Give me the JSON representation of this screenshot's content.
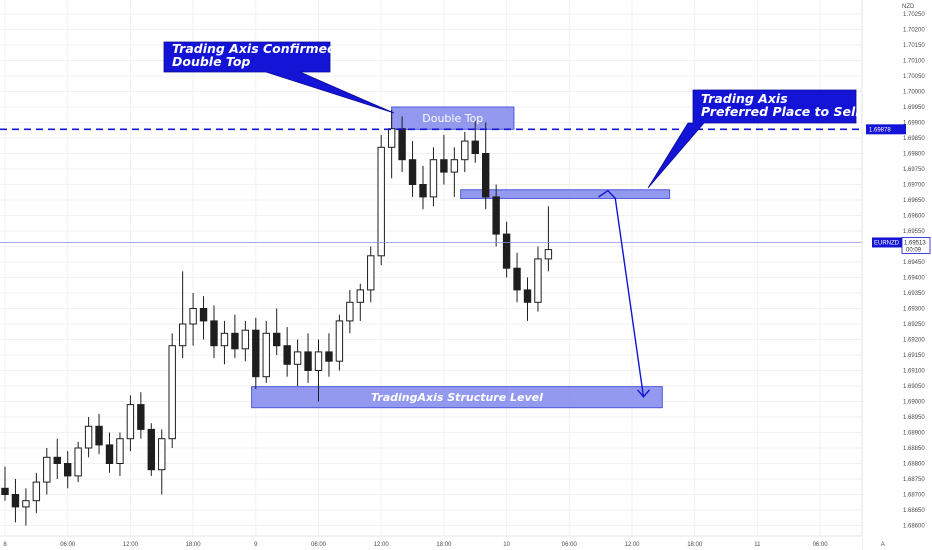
{
  "chart_data": {
    "type": "candlestick",
    "symbol": "EURNZD",
    "currency": "NZD",
    "ylim": [
      1.686,
      1.703
    ],
    "y_ticks": [
      1.7025,
      1.702,
      1.7015,
      1.701,
      1.7005,
      1.7,
      1.6995,
      1.699,
      1.6985,
      1.698,
      1.6975,
      1.697,
      1.6965,
      1.696,
      1.6955,
      1.695,
      1.6945,
      1.694,
      1.6935,
      1.693,
      1.6925,
      1.692,
      1.6915,
      1.691,
      1.6905,
      1.69,
      1.6895,
      1.689,
      1.6885,
      1.688,
      1.6875,
      1.687,
      1.6865,
      1.686
    ],
    "y_tick_labels": [
      "1.70250",
      "1.70200",
      "1.70150",
      "1.70100",
      "1.70050",
      "1.70000",
      "1.69950",
      "1.69900",
      "1.69850",
      "1.69800",
      "1.69750",
      "1.69700",
      "1.69650",
      "1.69600",
      "1.69550",
      "1.69500",
      "1.69450",
      "1.69400",
      "1.69350",
      "1.69300",
      "1.69250",
      "1.69200",
      "1.69150",
      "1.69100",
      "1.69050",
      "1.69000",
      "1.68950",
      "1.68900",
      "1.68850",
      "1.68800",
      "1.68750",
      "1.68700",
      "1.68650",
      "1.68600"
    ],
    "x_ticks": [
      0,
      6,
      12,
      18,
      24,
      30,
      36,
      42,
      48,
      54,
      60,
      66,
      72,
      78,
      84
    ],
    "x_tick_labels": [
      "8",
      "06:00",
      "12:00",
      "18:00",
      "9",
      "06:00",
      "12:00",
      "18:00",
      "10",
      "06:00",
      "12:00",
      "18:00",
      "11",
      "06:00",
      "A"
    ],
    "xlim": [
      0,
      86
    ],
    "candles": [
      [
        1.6872,
        1.6879,
        1.6868,
        1.687
      ],
      [
        1.687,
        1.6875,
        1.6861,
        1.6866
      ],
      [
        1.6866,
        1.6872,
        1.686,
        1.6868
      ],
      [
        1.6868,
        1.6877,
        1.6864,
        1.6874
      ],
      [
        1.6874,
        1.6885,
        1.687,
        1.6882
      ],
      [
        1.6882,
        1.6888,
        1.6875,
        1.688
      ],
      [
        1.688,
        1.6884,
        1.6872,
        1.6876
      ],
      [
        1.6876,
        1.6887,
        1.6874,
        1.6885
      ],
      [
        1.6885,
        1.6895,
        1.6882,
        1.6892
      ],
      [
        1.6892,
        1.6896,
        1.6883,
        1.6886
      ],
      [
        1.6886,
        1.689,
        1.6877,
        1.688
      ],
      [
        1.688,
        1.689,
        1.6876,
        1.6888
      ],
      [
        1.6888,
        1.6902,
        1.6884,
        1.6899
      ],
      [
        1.6899,
        1.6903,
        1.6888,
        1.6891
      ],
      [
        1.6891,
        1.6893,
        1.6876,
        1.6878
      ],
      [
        1.6878,
        1.6891,
        1.687,
        1.6888
      ],
      [
        1.6888,
        1.6922,
        1.6885,
        1.6918
      ],
      [
        1.6918,
        1.6942,
        1.6914,
        1.6925
      ],
      [
        1.6925,
        1.6935,
        1.6918,
        1.693
      ],
      [
        1.693,
        1.6934,
        1.692,
        1.6926
      ],
      [
        1.6926,
        1.6931,
        1.6914,
        1.6918
      ],
      [
        1.6918,
        1.6926,
        1.6912,
        1.6922
      ],
      [
        1.6922,
        1.6928,
        1.6914,
        1.6917
      ],
      [
        1.6917,
        1.6926,
        1.6913,
        1.6923
      ],
      [
        1.6923,
        1.6927,
        1.6904,
        1.6908
      ],
      [
        1.6908,
        1.6926,
        1.6906,
        1.6922
      ],
      [
        1.6922,
        1.693,
        1.6915,
        1.6918
      ],
      [
        1.6918,
        1.6924,
        1.6908,
        1.6912
      ],
      [
        1.6912,
        1.692,
        1.6905,
        1.6916
      ],
      [
        1.6916,
        1.6922,
        1.6906,
        1.691
      ],
      [
        1.691,
        1.692,
        1.69,
        1.6916
      ],
      [
        1.6916,
        1.6922,
        1.6908,
        1.6913
      ],
      [
        1.6913,
        1.6928,
        1.691,
        1.6926
      ],
      [
        1.6926,
        1.6936,
        1.6922,
        1.6932
      ],
      [
        1.6932,
        1.6938,
        1.6926,
        1.6936
      ],
      [
        1.6936,
        1.695,
        1.6932,
        1.6947
      ],
      [
        1.6947,
        1.6986,
        1.6944,
        1.6982
      ],
      [
        1.6982,
        1.6994,
        1.6972,
        1.6988
      ],
      [
        1.6988,
        1.6992,
        1.6974,
        1.6978
      ],
      [
        1.6978,
        1.6984,
        1.6966,
        1.697
      ],
      [
        1.697,
        1.6976,
        1.6962,
        1.6966
      ],
      [
        1.6966,
        1.6982,
        1.6963,
        1.6978
      ],
      [
        1.6978,
        1.6986,
        1.697,
        1.6974
      ],
      [
        1.6974,
        1.6982,
        1.6966,
        1.6978
      ],
      [
        1.6978,
        1.6987,
        1.6974,
        1.6984
      ],
      [
        1.6984,
        1.6991,
        1.6977,
        1.698
      ],
      [
        1.698,
        1.699,
        1.6962,
        1.6966
      ],
      [
        1.6966,
        1.697,
        1.695,
        1.6954
      ],
      [
        1.6954,
        1.6958,
        1.694,
        1.6943
      ],
      [
        1.6943,
        1.6948,
        1.6932,
        1.6936
      ],
      [
        1.6936,
        1.694,
        1.6926,
        1.6932
      ],
      [
        1.6932,
        1.695,
        1.6929,
        1.6946
      ],
      [
        1.6946,
        1.6963,
        1.6942,
        1.6949
      ]
    ],
    "annotations": {
      "callout_confirmed": [
        "Trading Axis Confirmed",
        "Double Top"
      ],
      "callout_sell": [
        "Trading Axis",
        "Preferred Place to Sell"
      ],
      "zone_double_top": "Double Top",
      "zone_structure": "TradingAxis Structure Level",
      "resistance_level": 1.69878,
      "resistance_label": "1.69878",
      "current_price": 1.69513,
      "current_label": "1.69513",
      "countdown": "00:09",
      "symbol_tag": "EURNZD"
    },
    "zones": [
      {
        "name": "zone-double-top",
        "x0": 37.0,
        "x1": 48.7,
        "y0": 1.69878,
        "y1": 1.6995
      },
      {
        "name": "zone-sell",
        "x0": 43.6,
        "x1": 63.6,
        "y0": 1.69655,
        "y1": 1.69683
      },
      {
        "name": "zone-structure",
        "x0": 23.6,
        "x1": 62.9,
        "y0": 1.6898,
        "y1": 1.69048
      }
    ],
    "projection": [
      [
        56.8,
        1.6966
      ],
      [
        57.7,
        1.6968
      ],
      [
        58.4,
        1.69655
      ],
      [
        61.1,
        1.69015
      ]
    ],
    "colors": {
      "candle": "#1e1e1e",
      "accent": "#1414d6",
      "zone_fill": "#7b82ec",
      "zone_stroke": "#4f58dd",
      "grid": "#f1f1f1",
      "axis_text": "#4a4a4a"
    }
  }
}
